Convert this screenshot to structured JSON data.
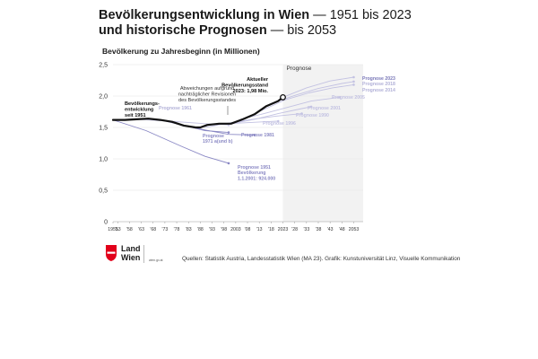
{
  "title": {
    "line1_bold": "Bevölkerungsentwicklung in Wien",
    "line1_rest": " — 1951 bis 2023",
    "line2_bold": "und historische Prognosen",
    "line2_rest": " — bis 2053"
  },
  "footer": {
    "logo_line1": "Land",
    "logo_line2": "Wien",
    "logo_small": "wien.gv.at",
    "sources": "Quellen: Statistik Austria, Landesstatistik Wien (MA 23). Grafik: Kunstuniversität Linz, Visuelle Kommunikation"
  },
  "colors": {
    "actual": "#111111",
    "forecast_dark": "#8a88c4",
    "forecast_light": "#c3c2e2",
    "forecast_shade": "#f2f2f2",
    "grid": "#e6e6e6",
    "logo_red": "#e2001a"
  },
  "chart_data": {
    "type": "line",
    "ylabel": "Bevölkerung zu Jahresbeginn (in Millionen)",
    "xlabel": "",
    "ylim": [
      0,
      2.5
    ],
    "xlim": [
      1951,
      2057
    ],
    "y_ticks": [
      "0",
      "0,5",
      "1,0",
      "1,5",
      "2,0",
      "2,5"
    ],
    "x_ticks": [
      {
        "year": 1951,
        "label": "1951"
      },
      {
        "year": 1953,
        "label": "'53"
      },
      {
        "year": 1958,
        "label": "'58"
      },
      {
        "year": 1963,
        "label": "'63"
      },
      {
        "year": 1968,
        "label": "'68"
      },
      {
        "year": 1973,
        "label": "'73"
      },
      {
        "year": 1978,
        "label": "'78"
      },
      {
        "year": 1983,
        "label": "'83"
      },
      {
        "year": 1988,
        "label": "'88"
      },
      {
        "year": 1993,
        "label": "'93"
      },
      {
        "year": 1998,
        "label": "'98"
      },
      {
        "year": 2003,
        "label": "2003"
      },
      {
        "year": 2008,
        "label": "'08"
      },
      {
        "year": 2013,
        "label": "'13"
      },
      {
        "year": 2018,
        "label": "'18"
      },
      {
        "year": 2023,
        "label": "2023"
      },
      {
        "year": 2028,
        "label": "'28"
      },
      {
        "year": 2033,
        "label": "'33"
      },
      {
        "year": 2038,
        "label": "'38"
      },
      {
        "year": 2043,
        "label": "'43"
      },
      {
        "year": 2048,
        "label": "'48"
      },
      {
        "year": 2053,
        "label": "2053"
      }
    ],
    "forecast_region": {
      "from": 2023,
      "to": 2057,
      "label": "Prognose"
    },
    "grid": true,
    "series": [
      {
        "name": "Bevölkerungsentwicklung seit 1951",
        "role": "actual",
        "x": [
          1951,
          1956,
          1961,
          1966,
          1971,
          1976,
          1981,
          1986,
          1988,
          1991,
          1996,
          2001,
          2006,
          2011,
          2016,
          2021,
          2023
        ],
        "y": [
          1.62,
          1.62,
          1.63,
          1.64,
          1.62,
          1.59,
          1.53,
          1.5,
          1.5,
          1.54,
          1.56,
          1.56,
          1.63,
          1.71,
          1.84,
          1.92,
          1.98
        ]
      },
      {
        "name": "Prognose 1961",
        "role": "forecast_light",
        "x": [
          1961,
          1975,
          1990,
          2000
        ],
        "y": [
          1.63,
          1.6,
          1.56,
          1.54
        ]
      },
      {
        "name": "Prognose 1971 a(und b)",
        "role": "forecast_dark",
        "x": [
          1971,
          1980,
          1990,
          2000
        ],
        "y": [
          1.62,
          1.54,
          1.45,
          1.42
        ]
      },
      {
        "name": "Prognose 1981",
        "role": "forecast_dark",
        "x": [
          1981,
          1990,
          2000,
          2011
        ],
        "y": [
          1.53,
          1.46,
          1.39,
          1.38
        ]
      },
      {
        "name": "Prognose 1951",
        "role": "forecast_dark",
        "x": [
          1951,
          1965,
          1980,
          1990,
          2000
        ],
        "y": [
          1.62,
          1.45,
          1.2,
          1.04,
          0.93
        ]
      },
      {
        "name": "Prognose 1996",
        "role": "forecast_light",
        "x": [
          1996,
          2005,
          2015,
          2021
        ],
        "y": [
          1.55,
          1.57,
          1.59,
          1.6
        ]
      },
      {
        "name": "Prognose 1990",
        "role": "forecast_light",
        "x": [
          1990,
          2000,
          2010,
          2020,
          2031
        ],
        "y": [
          1.5,
          1.57,
          1.63,
          1.68,
          1.72
        ]
      },
      {
        "name": "Prognose 2001",
        "role": "forecast_light",
        "x": [
          2001,
          2011,
          2021,
          2031,
          2035
        ],
        "y": [
          1.56,
          1.63,
          1.72,
          1.8,
          1.83
        ]
      },
      {
        "name": "Prognose 2005",
        "role": "forecast_light",
        "x": [
          2005,
          2015,
          2025,
          2035,
          2047
        ],
        "y": [
          1.63,
          1.72,
          1.82,
          1.92,
          1.98
        ]
      },
      {
        "name": "Prognose 2014",
        "role": "forecast_light",
        "x": [
          2014,
          2024,
          2034,
          2044,
          2053
        ],
        "y": [
          1.77,
          1.94,
          2.05,
          2.13,
          2.18
        ]
      },
      {
        "name": "Prognose 2018",
        "role": "forecast_light",
        "x": [
          2018,
          2028,
          2038,
          2048,
          2053
        ],
        "y": [
          1.88,
          2.01,
          2.12,
          2.2,
          2.23
        ]
      },
      {
        "name": "Prognose 2023",
        "role": "forecast_light",
        "x": [
          2023,
          2033,
          2043,
          2053
        ],
        "y": [
          1.98,
          2.13,
          2.24,
          2.3
        ]
      }
    ],
    "annotations": [
      {
        "id": "actual",
        "lines": [
          "Bevölkerungs-",
          "entwicklung",
          "seit 1951"
        ]
      },
      {
        "id": "revision",
        "lines": [
          "Abweichungen aufgrund",
          "nachträglicher Revisionen",
          "des Bevölkerungsstandes"
        ]
      },
      {
        "id": "current",
        "lines": [
          "Aktueller",
          "Bevölkerungsstand",
          "2023: 1,98 Mio."
        ]
      },
      {
        "id": "p1961",
        "lines": [
          "Prognose 1961"
        ]
      },
      {
        "id": "p1971",
        "lines": [
          "Prognose",
          "1971 a(und b)"
        ]
      },
      {
        "id": "p1981",
        "lines": [
          "Prognose 1981"
        ]
      },
      {
        "id": "p1951",
        "lines": [
          "Prognose 1951",
          "Bevölkerung",
          "1.1.2001: 924.000"
        ]
      },
      {
        "id": "p1996",
        "lines": [
          "Prognose 1996"
        ]
      },
      {
        "id": "p1990",
        "lines": [
          "Prognose 1990"
        ]
      },
      {
        "id": "p2001",
        "lines": [
          "Prognose 2001"
        ]
      },
      {
        "id": "p2005",
        "lines": [
          "Prognose 2005"
        ]
      },
      {
        "id": "p2014",
        "lines": [
          "Prognose 2014"
        ]
      },
      {
        "id": "p2018",
        "lines": [
          "Prognose 2018"
        ]
      },
      {
        "id": "p2023",
        "lines": [
          "Prognose 2023"
        ]
      }
    ]
  }
}
